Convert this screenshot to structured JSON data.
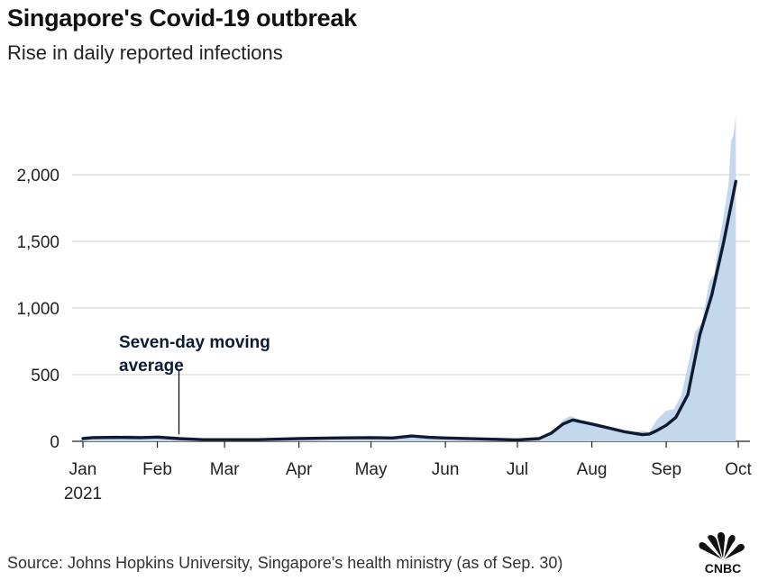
{
  "header": {
    "title": "Singapore's Covid-19 outbreak",
    "subtitle": "Rise in daily reported infections"
  },
  "footer": {
    "source": "Source: Johns Hopkins University, Singapore's health ministry (as of Sep. 30)"
  },
  "logo": {
    "text": "CNBC",
    "icon": "peacock-logo-icon"
  },
  "colors": {
    "line": "#0f1b33",
    "area": "#c3d8ec",
    "grid": "#cfcfcf",
    "axis": "#222222"
  },
  "chart_data": {
    "type": "area",
    "title": "",
    "xlabel": "",
    "ylabel": "",
    "ylim": [
      0,
      2500
    ],
    "grid": true,
    "y_ticks": [
      0,
      500,
      1000,
      1500,
      2000
    ],
    "y_tick_labels": [
      "0",
      "500",
      "1,000",
      "1,500",
      "2,000"
    ],
    "x_ticks": [
      "2021-01-01",
      "2021-02-01",
      "2021-03-01",
      "2021-04-01",
      "2021-05-01",
      "2021-06-01",
      "2021-07-01",
      "2021-08-01",
      "2021-09-01",
      "2021-10-01"
    ],
    "x_tick_labels": [
      "Jan",
      "Feb",
      "Mar",
      "Apr",
      "May",
      "Jun",
      "Jul",
      "Aug",
      "Sep",
      "Oct"
    ],
    "x_year_label": "2021",
    "annotation": {
      "lines": [
        "Seven-day moving",
        "average"
      ],
      "x": "2021-02-10",
      "y": 25
    },
    "series": [
      {
        "name": "Daily reported infections",
        "kind": "area",
        "x": [
          "2021-01-01",
          "2021-01-10",
          "2021-01-20",
          "2021-02-01",
          "2021-02-10",
          "2021-02-20",
          "2021-03-01",
          "2021-03-15",
          "2021-04-01",
          "2021-04-15",
          "2021-05-01",
          "2021-05-10",
          "2021-05-18",
          "2021-06-01",
          "2021-06-15",
          "2021-07-01",
          "2021-07-10",
          "2021-07-15",
          "2021-07-20",
          "2021-07-23",
          "2021-07-26",
          "2021-08-01",
          "2021-08-08",
          "2021-08-15",
          "2021-08-22",
          "2021-08-25",
          "2021-08-28",
          "2021-09-01",
          "2021-09-04",
          "2021-09-07",
          "2021-09-10",
          "2021-09-13",
          "2021-09-16",
          "2021-09-19",
          "2021-09-21",
          "2021-09-23",
          "2021-09-25",
          "2021-09-27",
          "2021-09-28",
          "2021-09-29",
          "2021-09-30"
        ],
        "values": [
          35,
          30,
          45,
          35,
          20,
          15,
          15,
          12,
          20,
          25,
          30,
          20,
          45,
          30,
          25,
          10,
          20,
          60,
          160,
          190,
          170,
          120,
          90,
          60,
          80,
          70,
          160,
          230,
          240,
          330,
          560,
          820,
          900,
          1200,
          1250,
          1500,
          1700,
          1930,
          2250,
          2300,
          2450
        ]
      },
      {
        "name": "Seven-day moving average",
        "kind": "line",
        "x": [
          "2021-01-01",
          "2021-01-05",
          "2021-01-15",
          "2021-01-25",
          "2021-02-01",
          "2021-02-10",
          "2021-02-20",
          "2021-03-01",
          "2021-03-15",
          "2021-04-01",
          "2021-04-15",
          "2021-05-01",
          "2021-05-10",
          "2021-05-18",
          "2021-05-25",
          "2021-06-01",
          "2021-06-15",
          "2021-07-01",
          "2021-07-10",
          "2021-07-15",
          "2021-07-20",
          "2021-07-24",
          "2021-08-01",
          "2021-08-08",
          "2021-08-15",
          "2021-08-22",
          "2021-08-25",
          "2021-08-28",
          "2021-09-01",
          "2021-09-05",
          "2021-09-10",
          "2021-09-15",
          "2021-09-20",
          "2021-09-25",
          "2021-09-30"
        ],
        "values": [
          20,
          28,
          30,
          28,
          32,
          20,
          12,
          12,
          12,
          20,
          25,
          28,
          25,
          40,
          30,
          25,
          18,
          10,
          20,
          60,
          130,
          160,
          130,
          100,
          70,
          50,
          55,
          80,
          120,
          180,
          350,
          800,
          1100,
          1500,
          1950
        ]
      }
    ]
  }
}
